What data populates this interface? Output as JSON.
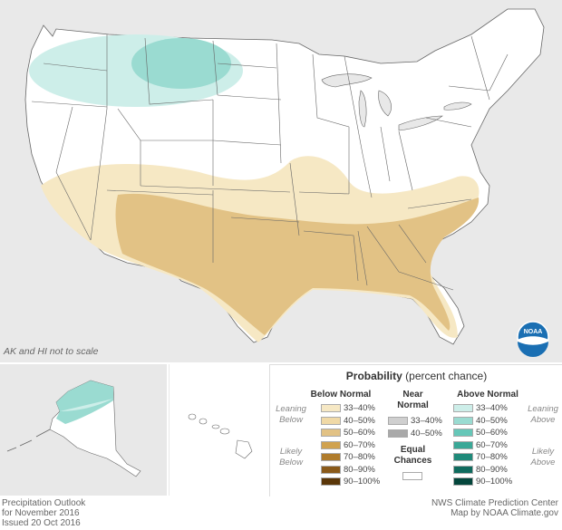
{
  "map_note": "AK and HI not to scale",
  "legend": {
    "title_bold": "Probability",
    "title_rest": "(percent chance)",
    "below": {
      "heading": "Below Normal",
      "leaning": [
        "Leaning",
        "Below"
      ],
      "likely": [
        "Likely",
        "Below"
      ],
      "items": [
        {
          "label": "33–40%",
          "color": "#f6e8c4"
        },
        {
          "label": "40–50%",
          "color": "#f0d9a6"
        },
        {
          "label": "50–60%",
          "color": "#e2c285"
        },
        {
          "label": "60–70%",
          "color": "#d0a24f"
        },
        {
          "label": "70–80%",
          "color": "#b07c2c"
        },
        {
          "label": "80–90%",
          "color": "#8a5a1a"
        },
        {
          "label": "90–100%",
          "color": "#5a3608"
        }
      ]
    },
    "near": {
      "heading": [
        "Near",
        "Normal"
      ],
      "items": [
        {
          "label": "33–40%",
          "color": "#cfcfcf"
        },
        {
          "label": "40–50%",
          "color": "#a9a9a9"
        }
      ],
      "equal": [
        "Equal",
        "Chances"
      ],
      "equal_color": "#ffffff"
    },
    "above": {
      "heading": "Above Normal",
      "leaning": [
        "Leaning",
        "Above"
      ],
      "likely": [
        "Likely",
        "Above"
      ],
      "items": [
        {
          "label": "33–40%",
          "color": "#cdeee9"
        },
        {
          "label": "40–50%",
          "color": "#9adbd1"
        },
        {
          "label": "50–60%",
          "color": "#66c7b8"
        },
        {
          "label": "60–70%",
          "color": "#3aa897"
        },
        {
          "label": "70–80%",
          "color": "#1f8a7a"
        },
        {
          "label": "80–90%",
          "color": "#0f6b5e"
        },
        {
          "label": "90–100%",
          "color": "#04463c"
        }
      ]
    }
  },
  "footer_left": [
    "Precipitation Outlook",
    "for November 2016",
    "Issued 20 Oct 2016"
  ],
  "footer_right": [
    "NWS Climate Prediction Center",
    "Map by NOAA Climate.gov"
  ],
  "logo_text": "NOAA",
  "colors": {
    "land": "#ffffff",
    "outside": "#e8e8e8",
    "lake": "#e8e8e8",
    "border": "#555555",
    "water": "#ffffff"
  }
}
